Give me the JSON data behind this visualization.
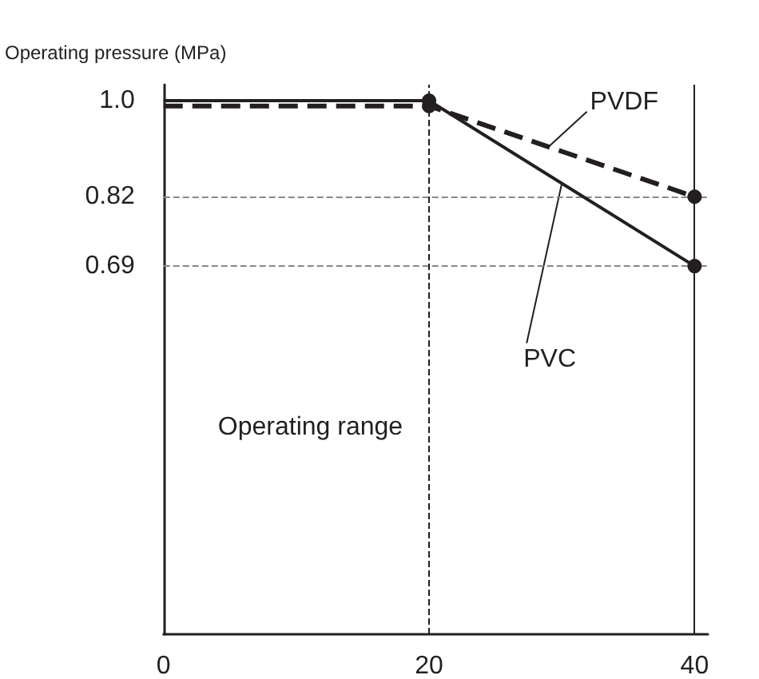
{
  "chart_data": {
    "type": "line",
    "ylabel": "Operating pressure (MPa)",
    "x": [
      0,
      20,
      40
    ],
    "xlim": [
      0,
      41
    ],
    "xticks": [
      0,
      20,
      40
    ],
    "ylim": [
      0,
      1.03
    ],
    "yticks": [
      {
        "value": 1,
        "label": "1.0"
      },
      0.82,
      0.69
    ],
    "marker": "circle",
    "legend": false,
    "grid": false,
    "series": [
      {
        "name": "PVC",
        "color": "#231f20",
        "line_style": "solid",
        "values": [
          1.0,
          1.0,
          0.69
        ]
      },
      {
        "name": "PVDF",
        "color": "#231f20",
        "line_style": "dashed",
        "values": [
          0.99,
          0.99,
          0.82
        ]
      }
    ],
    "ref_lines": [
      {
        "axis": "y",
        "value": 0.82,
        "color": "#888888",
        "line_style": "dashed"
      },
      {
        "axis": "y",
        "value": 0.69,
        "color": "#888888",
        "line_style": "dashed"
      },
      {
        "axis": "x",
        "value": 20,
        "color": "#231f20",
        "line_style": "dashed"
      },
      {
        "axis": "x",
        "value": 40,
        "color": "#231f20",
        "line_style": "solid"
      }
    ],
    "annotations": [
      "Operating range"
    ]
  }
}
